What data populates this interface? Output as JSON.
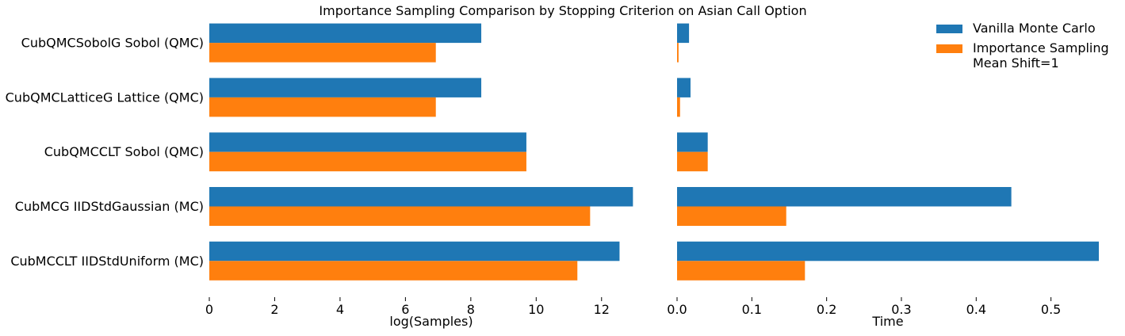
{
  "chart_data": {
    "type": "bar",
    "orientation": "horizontal",
    "title": "Importance Sampling Comparison by Stopping Criterion on Asian Call Option",
    "categories": [
      "CubQMCSobolG Sobol (QMC)",
      "CubQMCLatticeG Lattice (QMC)",
      "CubQMCCLT Sobol (QMC)",
      "CubMCG IIDStdGaussian (MC)",
      "CubMCCLT IIDStdUniform (MC)"
    ],
    "series_labels": [
      "Vanilla Monte Carlo",
      "Importance Sampling\nMean Shift=1"
    ],
    "colors": [
      "#1f77b4",
      "#ff7f0e"
    ],
    "legend_position": "top-right",
    "grid": false,
    "panels": [
      {
        "xlabel": "log(Samples)",
        "xlim": [
          0,
          13
        ],
        "xticks": [
          "0",
          "2",
          "4",
          "6",
          "8",
          "10",
          "12"
        ],
        "series": [
          {
            "name": "Vanilla Monte Carlo",
            "values": [
              8.32,
              8.32,
              9.7,
              12.96,
              12.55
            ]
          },
          {
            "name": "Importance Sampling Mean Shift=1",
            "values": [
              6.93,
              6.93,
              9.7,
              11.65,
              11.26
            ]
          }
        ]
      },
      {
        "xlabel": "Time",
        "xlim": [
          0,
          0.564
        ],
        "xticks": [
          "0.0",
          "0.1",
          "0.2",
          "0.3",
          "0.4",
          "0.5"
        ],
        "series": [
          {
            "name": "Vanilla Monte Carlo",
            "values": [
              0.016,
              0.018,
              0.041,
              0.447,
              0.564
            ]
          },
          {
            "name": "Importance Sampling Mean Shift=1",
            "values": [
              0.002,
              0.004,
              0.041,
              0.146,
              0.171
            ]
          }
        ]
      }
    ]
  }
}
